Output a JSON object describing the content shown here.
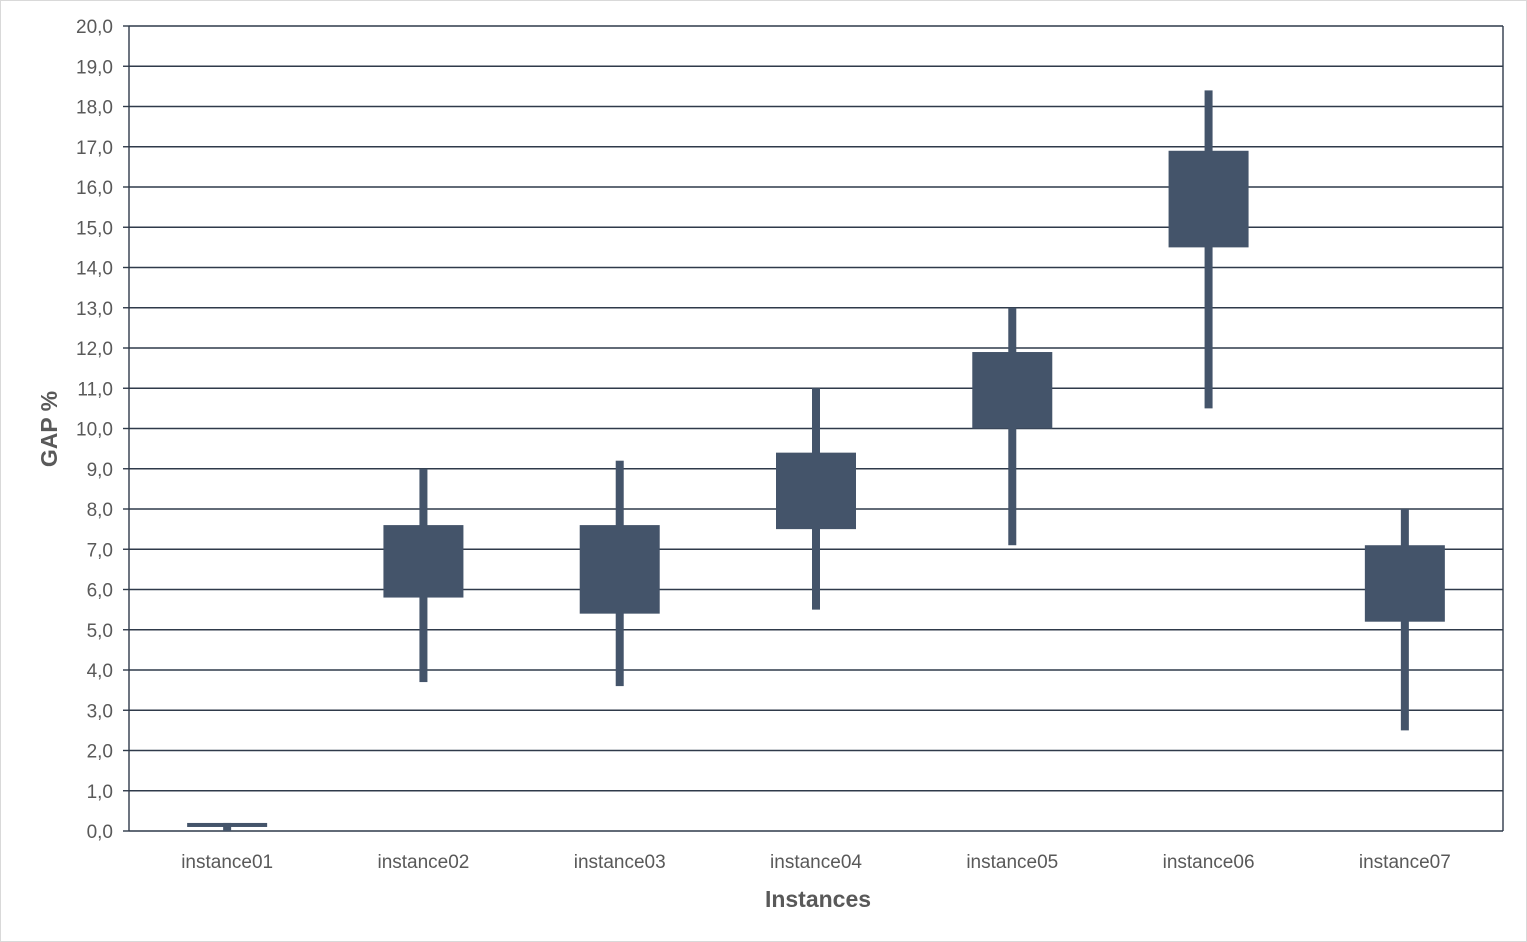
{
  "chart_data": {
    "type": "candlestick",
    "title": "",
    "xlabel": "Instances",
    "ylabel": "GAP %",
    "ylim": [
      0,
      20
    ],
    "y_tick_step": 1,
    "y_tick_labels": [
      "0,0",
      "1,0",
      "2,0",
      "3,0",
      "4,0",
      "5,0",
      "6,0",
      "7,0",
      "8,0",
      "9,0",
      "10,0",
      "11,0",
      "12,0",
      "13,0",
      "14,0",
      "15,0",
      "16,0",
      "17,0",
      "18,0",
      "19,0",
      "20,0"
    ],
    "grid": true,
    "legend": "none",
    "categories": [
      "instance01",
      "instance02",
      "instance03",
      "instance04",
      "instance05",
      "instance06",
      "instance07"
    ],
    "min": [
      0.0,
      3.7,
      3.6,
      5.5,
      7.1,
      10.5,
      2.5
    ],
    "box_low": [
      0.1,
      5.8,
      5.4,
      7.5,
      10.0,
      14.5,
      5.2
    ],
    "box_high": [
      0.2,
      7.6,
      7.6,
      9.4,
      11.9,
      16.9,
      7.1
    ],
    "max": [
      0.2,
      9.0,
      9.2,
      11.0,
      13.0,
      18.4,
      8.0
    ],
    "colors": {
      "mark": "#44546a",
      "grid": "#2f3a4a",
      "axis_text": "#595959"
    }
  }
}
